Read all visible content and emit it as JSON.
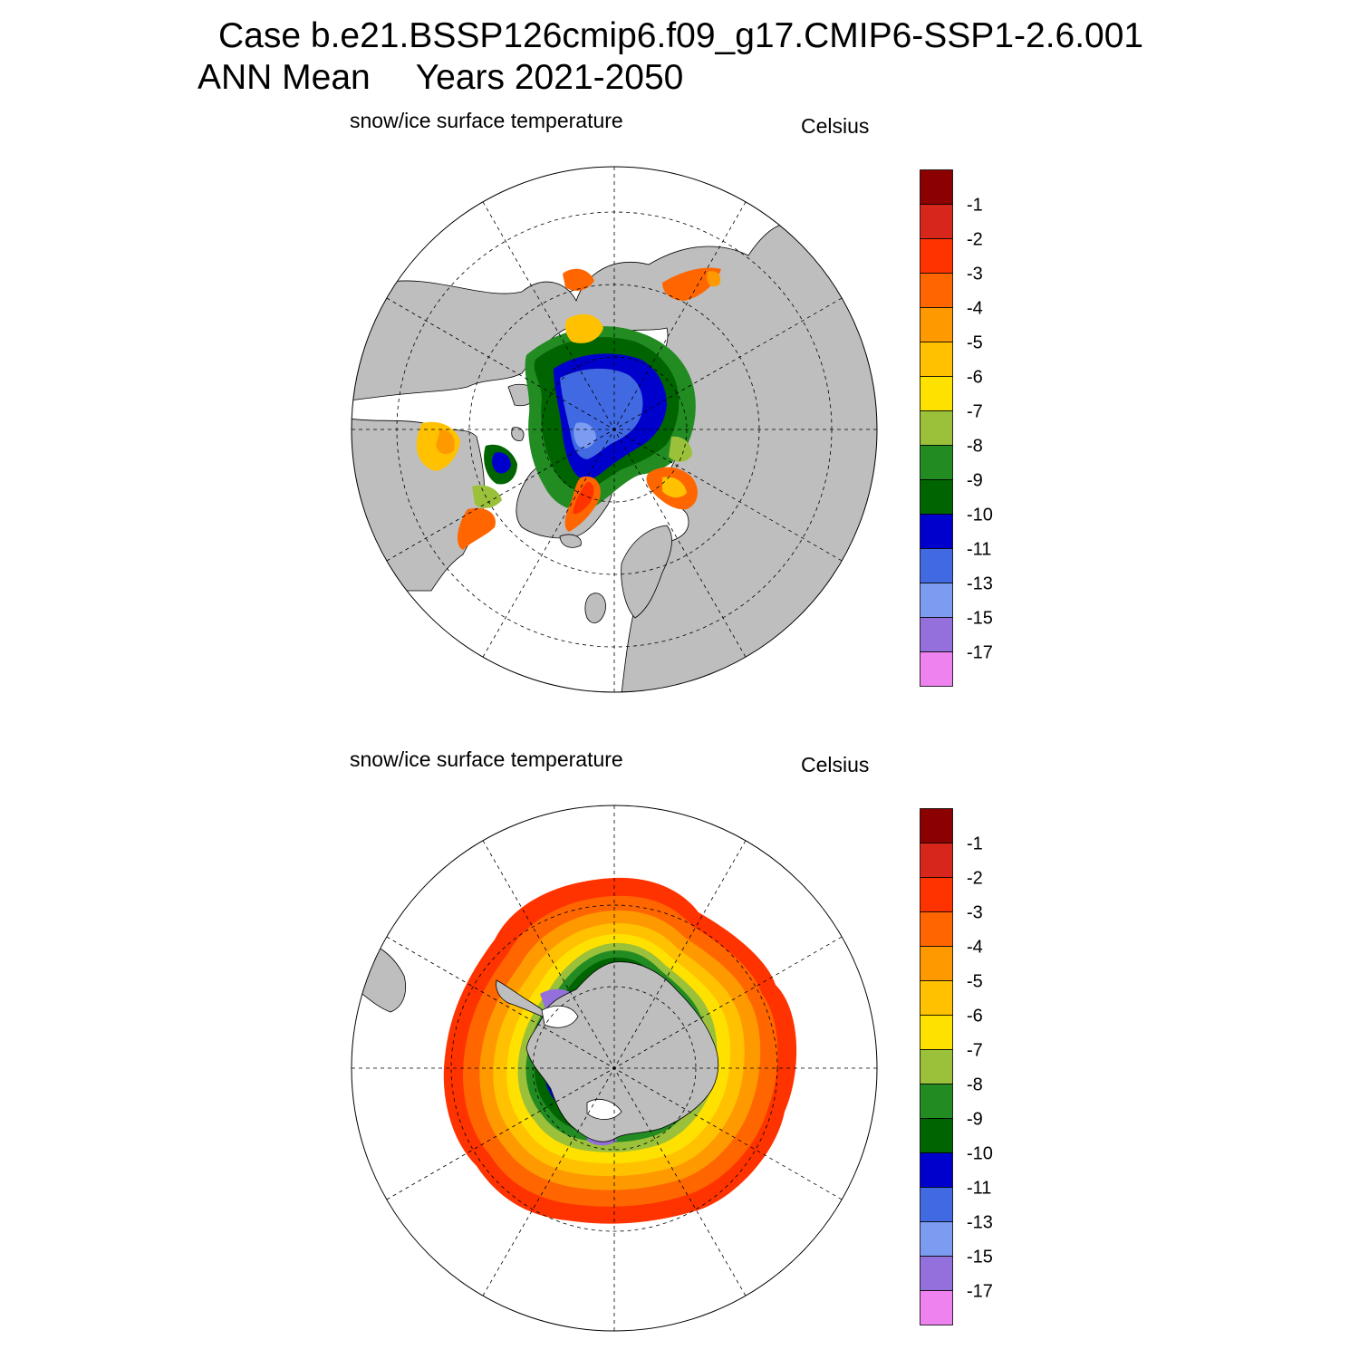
{
  "header": {
    "case_line": "Case b.e21.BSSP126cmip6.f09_g17.CMIP6-SSP1-2.6.001",
    "season": "ANN Mean",
    "years": "Years 2021-2050"
  },
  "colors": {
    "land": "#bebebe",
    "ocean": "#ffffff",
    "levels": [
      "#8b0000",
      "#d7261b",
      "#ff3300",
      "#ff6600",
      "#ff9900",
      "#ffc100",
      "#ffe100",
      "#9bc039",
      "#228b22",
      "#006400",
      "#0000cd",
      "#4169e1",
      "#7b9cf0",
      "#9370db",
      "#ee82ee"
    ]
  },
  "panels": [
    {
      "id": "north",
      "variable": "snow/ice surface temperature",
      "units": "Celsius",
      "hemisphere": "Northern Hemisphere polar stereographic",
      "colorbar_labels": [
        "-1",
        "-2",
        "-3",
        "-4",
        "-5",
        "-6",
        "-7",
        "-8",
        "-9",
        "-10",
        "-11",
        "-13",
        "-15",
        "-17"
      ]
    },
    {
      "id": "south",
      "variable": "snow/ice surface temperature",
      "units": "Celsius",
      "hemisphere": "Southern Hemisphere polar stereographic",
      "colorbar_labels": [
        "-1",
        "-2",
        "-3",
        "-4",
        "-5",
        "-6",
        "-7",
        "-8",
        "-9",
        "-10",
        "-11",
        "-13",
        "-15",
        "-17"
      ]
    }
  ]
}
